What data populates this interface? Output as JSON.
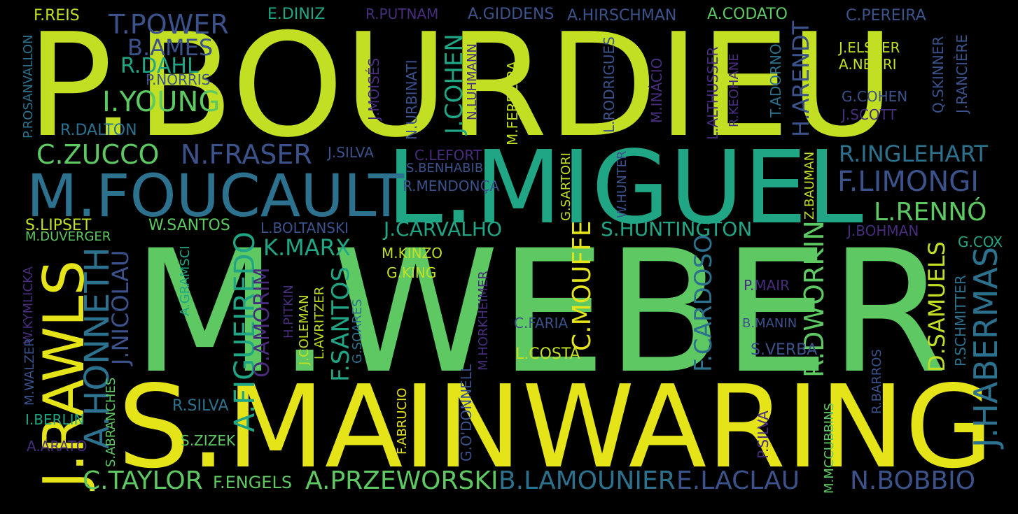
{
  "palette": {
    "lime": "#c2df23",
    "yellow": "#e5e419",
    "green": "#5ec962",
    "teal": "#21a685",
    "blue": "#2c728e",
    "indigo": "#3b528b",
    "purple": "#472d7b",
    "darkpurple": "#440154",
    "background": "#000000"
  },
  "words": [
    "P.BOURDIEU",
    "M.WEBER",
    "S.MAINWARING",
    "L.MIGUEL",
    "M.FOUCAULT",
    "J.RAWLS",
    "A.HONNETH",
    "J.HABERMAS",
    "F.REIS",
    "T.POWER",
    "E.DINIZ",
    "R.PUTNAM",
    "A.GIDDENS",
    "A.HIRSCHMAN",
    "A.CODATO",
    "C.PEREIRA",
    "B.AMES",
    "R.DAHL",
    "P.NORRIS",
    "I.YOUNG",
    "R.DALTON",
    "P.ROSANVALLON",
    "J.ELSTER",
    "A.NEGRI",
    "G.COHEN",
    "J.SCOTT",
    "Q.SKINNER",
    "J.RANCIÈRE",
    "J.MOISÉS",
    "N.URBINATI",
    "J.COHEN",
    "N.LUHMANN",
    "M.FERREIRA",
    "L.RODRIGUES",
    "M.INÁCIO",
    "L.ALTHUSSER",
    "R.KEOHANE",
    "T.ADORNO",
    "H.ARENDT",
    "C.ZUCCO",
    "N.FRASER",
    "J.SILVA",
    "C.LEFORT",
    "S.BENHABIB",
    "R.MENDONÇA",
    "G.SARTORI",
    "W.HUNTER",
    "Z.BAUMAN",
    "R.INGLEHART",
    "F.LIMONGI",
    "L.RENNÓ",
    "S.LIPSET",
    "W.SANTOS",
    "L.BOLTANSKI",
    "J.CARVALHO",
    "S.HUNTINGTON",
    "J.BOHMAN",
    "M.DUVERGER",
    "G.COX",
    "W.KYMLICKA",
    "J.NICOLAU",
    "A.GRAMSCI",
    "A.FIGUEIREDO",
    "O.AMORIM",
    "K.MARX",
    "H.PITKIN",
    "J.COLEMAN",
    "L.AVRITZER",
    "F.SANTOS",
    "G.SOARES",
    "M.KINZO",
    "G.KING",
    "M.HORKHEIMER",
    "C.MOUFFE",
    "C.FARIA",
    "F.CARDOSO",
    "P.MAIR",
    "B.MANIN",
    "R.DWORKIN",
    "D.SAMUELS",
    "P.SCHMITTER",
    "S.VERBA",
    "L.COSTA",
    "M.WALZER",
    "I.BERLIN",
    "S.ABRANCHES",
    "R.SILVA",
    "A.ARATO",
    "S.ZIZEK",
    "F.ABRUCIO",
    "G.O'DONNELL",
    "P.SILVA",
    "M.MCCUBBINS",
    "R.BARROS",
    "C.TAYLOR",
    "F.ENGELS",
    "A.PRZEWORSKI",
    "B.LAMOUNIER",
    "E.LACLAU",
    "N.BOBBIO"
  ]
}
